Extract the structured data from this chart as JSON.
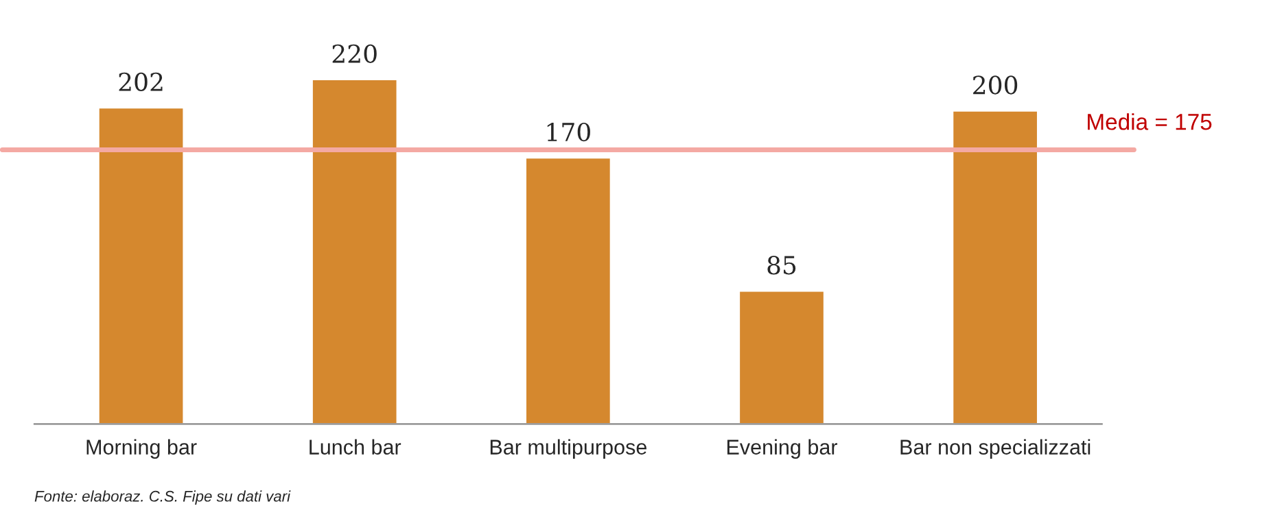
{
  "chart_data": {
    "type": "bar",
    "categories": [
      "Morning bar",
      "Lunch bar",
      "Bar multipurpose",
      "Evening bar",
      "Bar non specializzati"
    ],
    "values": [
      202,
      220,
      170,
      85,
      200
    ],
    "color": "#d5882e",
    "data_labels": true,
    "tick_labels": "x",
    "grid": false,
    "ref_lines": [
      {
        "axis": "y",
        "value": 175,
        "label": "Media = 175",
        "color": "#f4a9a3"
      }
    ],
    "annotations": [
      "Fonte: elaboraz. C.S. Fipe su dati vari"
    ]
  }
}
